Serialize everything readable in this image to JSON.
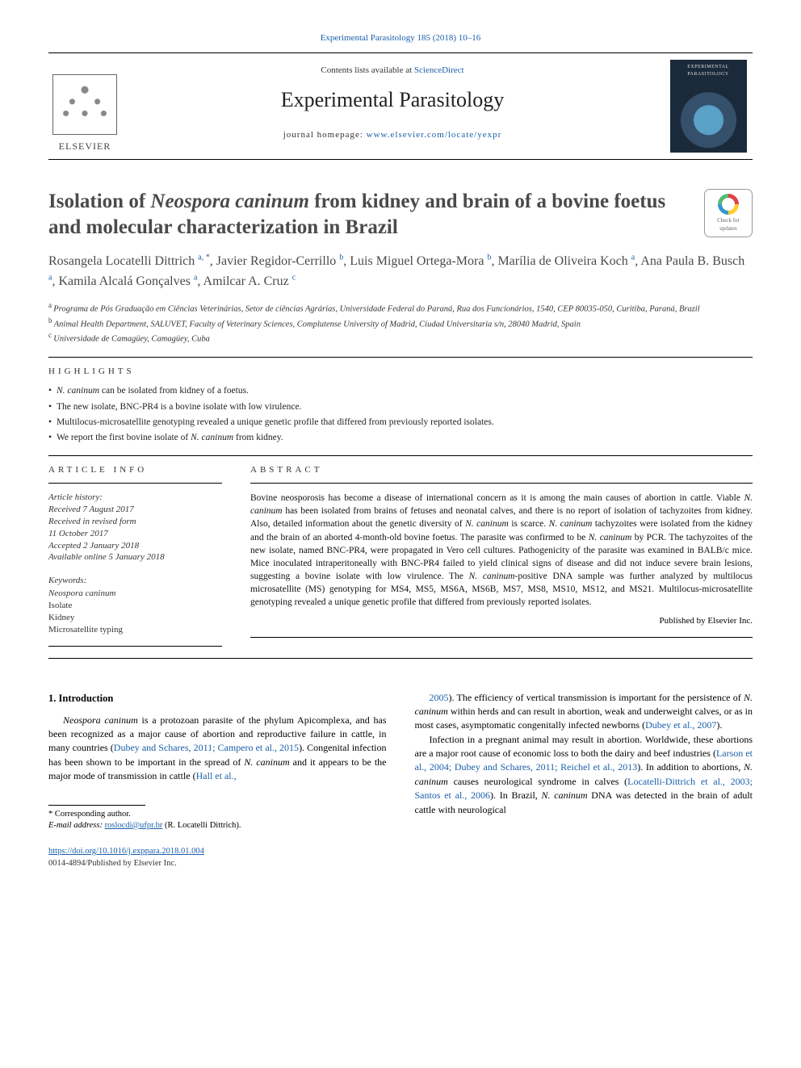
{
  "top_link": {
    "text": "Experimental Parasitology 185 (2018) 10–16",
    "href": "#"
  },
  "masthead": {
    "contents_prefix": "Contents lists available at ",
    "contents_link": "ScienceDirect",
    "journal_name": "Experimental Parasitology",
    "homepage_prefix": "journal homepage: ",
    "homepage_link": "www.elsevier.com/locate/yexpr",
    "publisher_wordmark": "ELSEVIER",
    "cover_label": "EXPERIMENTAL PARASITOLOGY"
  },
  "title": {
    "plain_prefix": "Isolation of ",
    "italic_taxon": "Neospora caninum",
    "plain_suffix": " from kidney and brain of a bovine foetus and molecular characterization in Brazil"
  },
  "crossmark": {
    "line1": "Check for",
    "line2": "updates"
  },
  "authors": [
    {
      "name": "Rosangela Locatelli Dittrich",
      "sups": [
        "a",
        "*"
      ]
    },
    {
      "name": "Javier Regidor-Cerrillo",
      "sups": [
        "b"
      ]
    },
    {
      "name": "Luis Miguel Ortega-Mora",
      "sups": [
        "b"
      ]
    },
    {
      "name": "Marília de Oliveira Koch",
      "sups": [
        "a"
      ]
    },
    {
      "name": "Ana Paula B. Busch",
      "sups": [
        "a"
      ]
    },
    {
      "name": "Kamila Alcalá Gonçalves",
      "sups": [
        "a"
      ]
    },
    {
      "name": "Amilcar A. Cruz",
      "sups": [
        "c"
      ]
    }
  ],
  "affiliations": [
    {
      "sup": "a",
      "text": "Programa de Pós Graduação em Ciências Veterinárias, Setor de ciências Agrárias, Universidade Federal do Paraná, Rua dos Funcionários, 1540, CEP 80035-050, Curitiba, Paraná, Brazil"
    },
    {
      "sup": "b",
      "text": "Animal Health Department, SALUVET, Faculty of Veterinary Sciences, Complutense University of Madrid, Ciudad Universitaria s/n, 28040 Madrid, Spain"
    },
    {
      "sup": "c",
      "text": "Universidade de Camagüey, Camagüey, Cuba"
    }
  ],
  "highlights": {
    "heading": "HIGHLIGHTS",
    "items": [
      {
        "pre": "",
        "it": "N. caninum",
        "post": " can be isolated from kidney of a foetus."
      },
      {
        "pre": "The new isolate, BNC-PR4 is a bovine isolate with low virulence.",
        "it": "",
        "post": ""
      },
      {
        "pre": "Multilocus-microsatellite genotyping revealed a unique genetic profile that differed from previously reported isolates.",
        "it": "",
        "post": ""
      },
      {
        "pre": "We report the first bovine isolate of ",
        "it": "N. caninum",
        "post": " from kidney."
      }
    ]
  },
  "article_info": {
    "heading": "ARTICLE INFO",
    "history_label": "Article history:",
    "history_lines": [
      "Received 7 August 2017",
      "Received in revised form",
      "11 October 2017",
      "Accepted 2 January 2018",
      "Available online 5 January 2018"
    ],
    "keywords_label": "Keywords:",
    "keywords": [
      {
        "text": "Neospora caninum",
        "italic": true
      },
      {
        "text": "Isolate",
        "italic": false
      },
      {
        "text": "Kidney",
        "italic": false
      },
      {
        "text": "Microsatellite typing",
        "italic": false
      }
    ]
  },
  "abstract": {
    "heading": "ABSTRACT",
    "text_parts": [
      {
        "t": "Bovine neosporosis has become a disease of international concern as it is among the main causes of abortion in cattle. Viable "
      },
      {
        "t": "N. caninum",
        "i": true
      },
      {
        "t": " has been isolated from brains of fetuses and neonatal calves, and there is no report of isolation of tachyzoites from kidney. Also, detailed information about the genetic diversity of "
      },
      {
        "t": "N. caninum",
        "i": true
      },
      {
        "t": " is scarce. "
      },
      {
        "t": "N. caninum",
        "i": true
      },
      {
        "t": " tachyzoites were isolated from the kidney and the brain of an aborted 4-month-old bovine foetus. The parasite was confirmed to be "
      },
      {
        "t": "N. caninum",
        "i": true
      },
      {
        "t": " by PCR. The tachyzoites of the new isolate, named BNC-PR4, were propagated in Vero cell cultures. Pathogenicity of the parasite was examined in BALB/c mice. Mice inoculated intraperitoneally with BNC-PR4 failed to yield clinical signs of disease and did not induce severe brain lesions, suggesting a bovine isolate with low virulence. The "
      },
      {
        "t": "N. caninum",
        "i": true
      },
      {
        "t": "-positive DNA sample was further analyzed by multilocus microsatellite (MS) genotyping for MS4, MS5, MS6A, MS6B, MS7, MS8, MS10, MS12, and MS21. Multilocus-microsatellite genotyping revealed a unique genetic profile that differed from previously reported isolates."
      }
    ],
    "copyright": "Published by Elsevier Inc."
  },
  "body": {
    "intro_heading": "1. Introduction",
    "col1": [
      {
        "runs": [
          {
            "t": "Neospora caninum",
            "i": true
          },
          {
            "t": " is a protozoan parasite of the phylum Apicomplexa, and has been recognized as a major cause of abortion and reproductive failure in cattle, in many countries ("
          },
          {
            "t": "Dubey and Schares, 2011; Campero et al., 2015",
            "c": true
          },
          {
            "t": "). Congenital infection has been shown to be important in the spread of "
          },
          {
            "t": "N. caninum",
            "i": true
          },
          {
            "t": " and it appears to be the major mode of transmission in cattle ("
          },
          {
            "t": "Hall et al.,",
            "c": true
          }
        ]
      }
    ],
    "col2": [
      {
        "runs": [
          {
            "t": "2005",
            "c": true
          },
          {
            "t": "). The efficiency of vertical transmission is important for the persistence of "
          },
          {
            "t": "N. caninum",
            "i": true
          },
          {
            "t": " within herds and can result in abortion, weak and underweight calves, or as in most cases, asymptomatic congenitally infected newborns ("
          },
          {
            "t": "Dubey et al., 2007",
            "c": true
          },
          {
            "t": ")."
          }
        ]
      },
      {
        "runs": [
          {
            "t": "Infection in a pregnant animal may result in abortion. Worldwide, these abortions are a major root cause of economic loss to both the dairy and beef industries ("
          },
          {
            "t": "Larson et al., 2004; Dubey and Schares, 2011; Reichel et al., 2013",
            "c": true
          },
          {
            "t": "). In addition to abortions, "
          },
          {
            "t": "N. caninum",
            "i": true
          },
          {
            "t": " causes neurological syndrome in calves ("
          },
          {
            "t": "Locatelli-Dittrich et al., 2003; Santos et al., 2006",
            "c": true
          },
          {
            "t": "). In Brazil, "
          },
          {
            "t": "N. caninum",
            "i": true
          },
          {
            "t": " DNA was detected in the brain of adult cattle with neurological"
          }
        ]
      }
    ]
  },
  "footnotes": {
    "corresponding": "* Corresponding author.",
    "email_label": "E-mail address: ",
    "email": "roslocdi@ufpr.br",
    "email_owner": " (R. Locatelli Dittrich)."
  },
  "footer": {
    "doi": "https://doi.org/10.1016/j.exppara.2018.01.004",
    "rights": "0014-4894/Published by Elsevier Inc."
  },
  "colors": {
    "link": "#1a5faa",
    "text": "#000000",
    "title_grey": "#4a4a4a",
    "cover_bg": "#1b2a3a"
  },
  "typography": {
    "base_family": "Georgia, 'Times New Roman', serif",
    "journal_name_pt": 26,
    "article_title_pt": 25,
    "authors_pt": 16,
    "body_pt": 12,
    "abstract_pt": 11.5,
    "small_pt": 11
  }
}
